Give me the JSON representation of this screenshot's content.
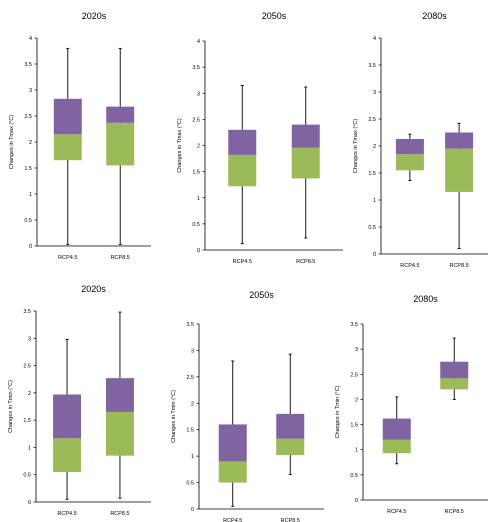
{
  "colors": {
    "upper_box": "#8064a2",
    "lower_box": "#9bbb59",
    "axis": "#000000",
    "whisker": "#000000"
  },
  "chart_data": [
    {
      "type": "boxplot",
      "title": "2020s",
      "ylabel": "Changes in Tmax (°C)",
      "ylim": [
        0,
        4
      ],
      "yticks": [
        "0",
        "0.5",
        "1",
        "1.5",
        "2",
        "2.5",
        "3",
        "3.5",
        "4"
      ],
      "categories": [
        "RCP4.5",
        "RCP8.5"
      ],
      "boxes": [
        {
          "min": 0.03,
          "q1": 1.65,
          "median": 2.15,
          "q3": 2.83,
          "max": 3.8
        },
        {
          "min": 0.03,
          "q1": 1.55,
          "median": 2.37,
          "q3": 2.68,
          "max": 3.8
        }
      ]
    },
    {
      "type": "boxplot",
      "title": "2050s",
      "ylabel": "Changes in Tmax (°C)",
      "ylim": [
        0,
        4
      ],
      "yticks": [
        "0",
        "0.5",
        "1",
        "1.5",
        "2",
        "2.5",
        "3",
        "3.5",
        "4"
      ],
      "categories": [
        "RCP4.5",
        "RCP8.5"
      ],
      "boxes": [
        {
          "min": 0.12,
          "q1": 1.22,
          "median": 1.82,
          "q3": 2.3,
          "max": 3.15
        },
        {
          "min": 0.23,
          "q1": 1.37,
          "median": 1.96,
          "q3": 2.4,
          "max": 3.12
        }
      ]
    },
    {
      "type": "boxplot",
      "title": "2080s",
      "ylabel": "Changes in Tmax (°C)",
      "ylim": [
        0,
        4
      ],
      "yticks": [
        "0",
        "0.5",
        "1",
        "1.5",
        "2",
        "2.5",
        "3",
        "3.5",
        "4"
      ],
      "categories": [
        "RCP4.5",
        "RCP8.5"
      ],
      "boxes": [
        {
          "min": 1.36,
          "q1": 1.55,
          "median": 1.85,
          "q3": 2.13,
          "max": 2.22
        },
        {
          "min": 0.1,
          "q1": 1.15,
          "median": 1.95,
          "q3": 2.25,
          "max": 2.42
        }
      ]
    },
    {
      "type": "boxplot",
      "title": "2020s",
      "ylabel": "Changes in Tmin (°C)",
      "ylim": [
        0,
        3.5
      ],
      "yticks": [
        "0",
        "0.5",
        "1",
        "1.5",
        "2",
        "2.5",
        "3",
        "3.5"
      ],
      "categories": [
        "RCP4.5",
        "RCP8.5"
      ],
      "boxes": [
        {
          "min": 0.05,
          "q1": 0.55,
          "median": 1.17,
          "q3": 1.97,
          "max": 2.98
        },
        {
          "min": 0.07,
          "q1": 0.85,
          "median": 1.65,
          "q3": 2.27,
          "max": 3.48
        }
      ]
    },
    {
      "type": "boxplot",
      "title": "2050s",
      "ylabel": "Changes in Tmin (°C)",
      "ylim": [
        0,
        3.5
      ],
      "yticks": [
        "0",
        "0.5",
        "1",
        "1.5",
        "2",
        "2.5",
        "3",
        "3.5"
      ],
      "categories": [
        "RCP4.5",
        "RCP8.5"
      ],
      "boxes": [
        {
          "min": 0.05,
          "q1": 0.5,
          "median": 0.9,
          "q3": 1.6,
          "max": 2.8
        },
        {
          "min": 0.65,
          "q1": 1.02,
          "median": 1.33,
          "q3": 1.8,
          "max": 2.93
        }
      ]
    },
    {
      "type": "boxplot",
      "title": "2080s",
      "ylabel": "Changes in Tmin (°C)",
      "ylim": [
        0,
        3.5
      ],
      "yticks": [
        "0",
        "0.5",
        "1",
        "1.5",
        "2",
        "2.5",
        "3",
        "3.5"
      ],
      "categories": [
        "RCP4.5",
        "RCP8.5"
      ],
      "boxes": [
        {
          "min": 0.72,
          "q1": 0.93,
          "median": 1.2,
          "q3": 1.62,
          "max": 2.05
        },
        {
          "min": 2.0,
          "q1": 2.2,
          "median": 2.42,
          "q3": 2.75,
          "max": 3.22
        }
      ]
    }
  ]
}
